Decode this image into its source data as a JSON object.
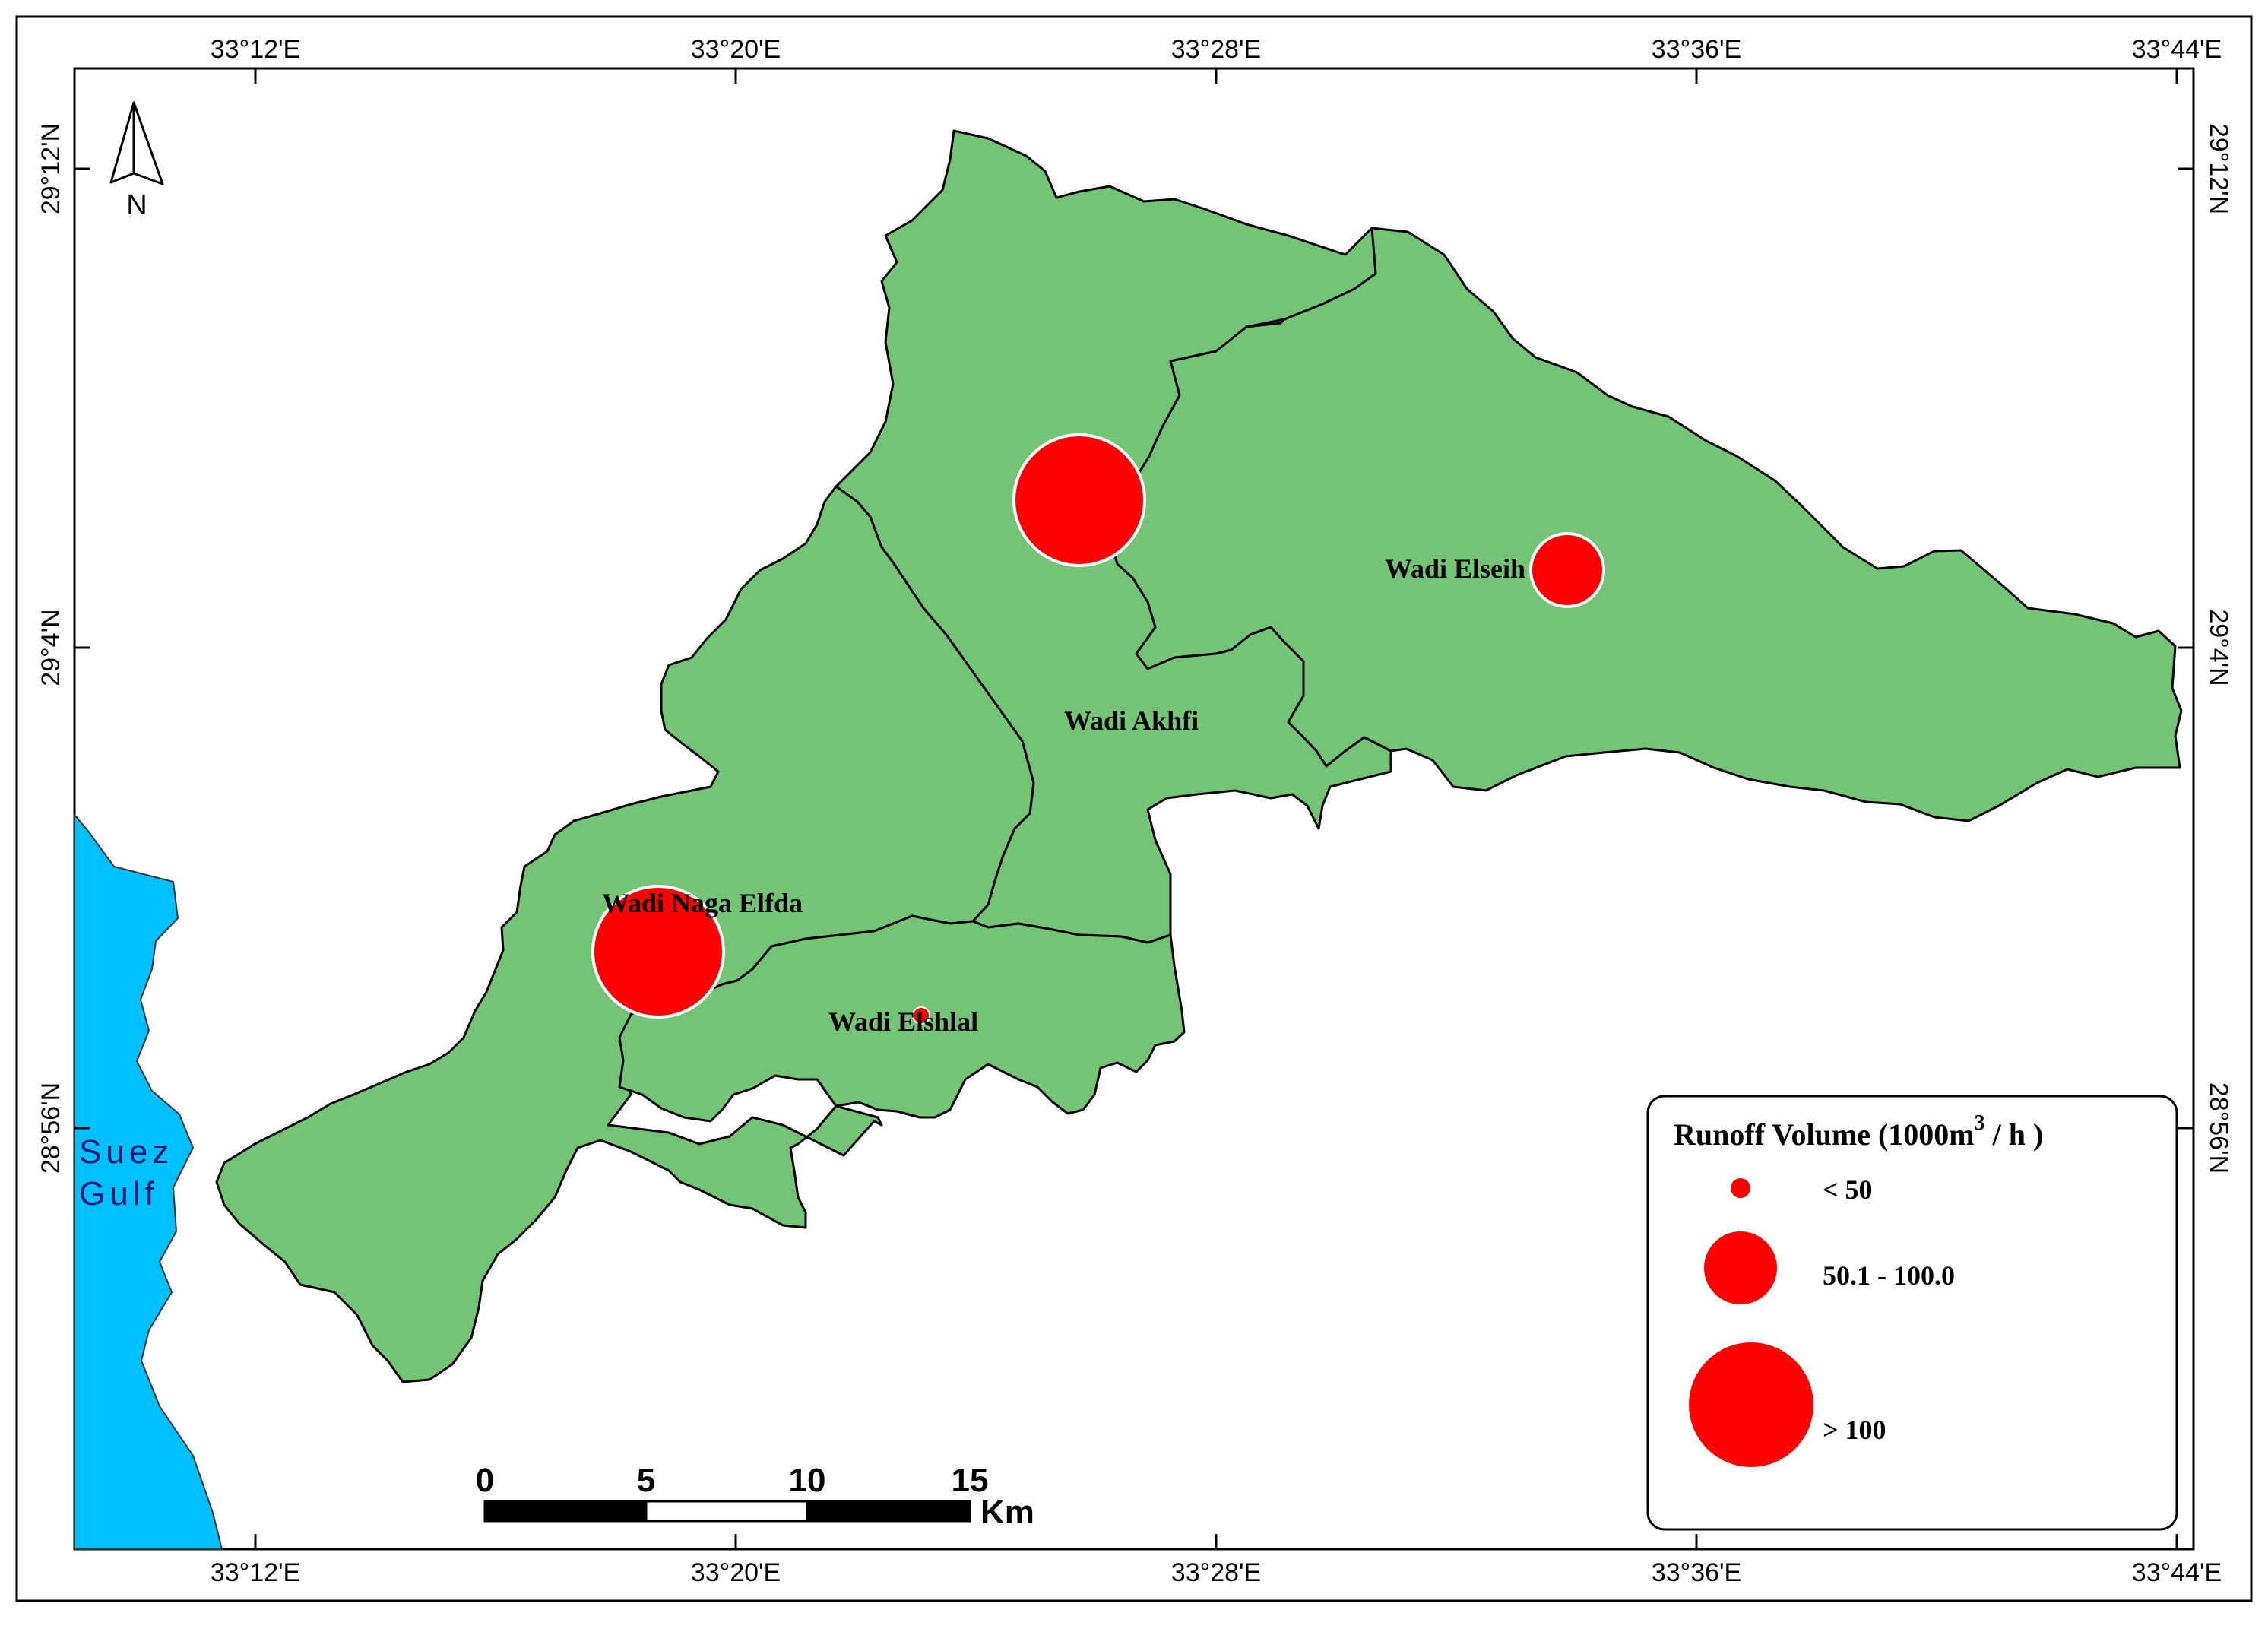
{
  "map": {
    "basins": [
      {
        "label": "Wadi Elseih"
      },
      {
        "label": "Wadi Akhfi"
      },
      {
        "label": "Wadi Naga Elfda"
      },
      {
        "label": "Wadi Elshlal"
      }
    ],
    "sea_label_line1": "Suez",
    "sea_label_line2": "Gulf",
    "colors": {
      "basin": "#74c476",
      "sea": "#00bfff",
      "symbol": "#ff0000",
      "outline": "#000000"
    }
  },
  "graticule": {
    "longitudes": [
      "33°12'E",
      "33°20'E",
      "33°28'E",
      "33°36'E",
      "33°44'E"
    ],
    "latitudes": [
      "29°12'N",
      "29°4'N",
      "28°56'N"
    ]
  },
  "north_arrow": {
    "label": "N",
    "icon": "north-arrow-icon"
  },
  "scale_bar": {
    "ticks": [
      "0",
      "5",
      "10",
      "15"
    ],
    "unit": "Km"
  },
  "legend": {
    "title_prefix": "Runoff Volume (1000m",
    "title_sup": "3",
    "title_suffix": " / h )",
    "classes": [
      "< 50",
      "50.1 - 100.0",
      "> 100"
    ]
  }
}
